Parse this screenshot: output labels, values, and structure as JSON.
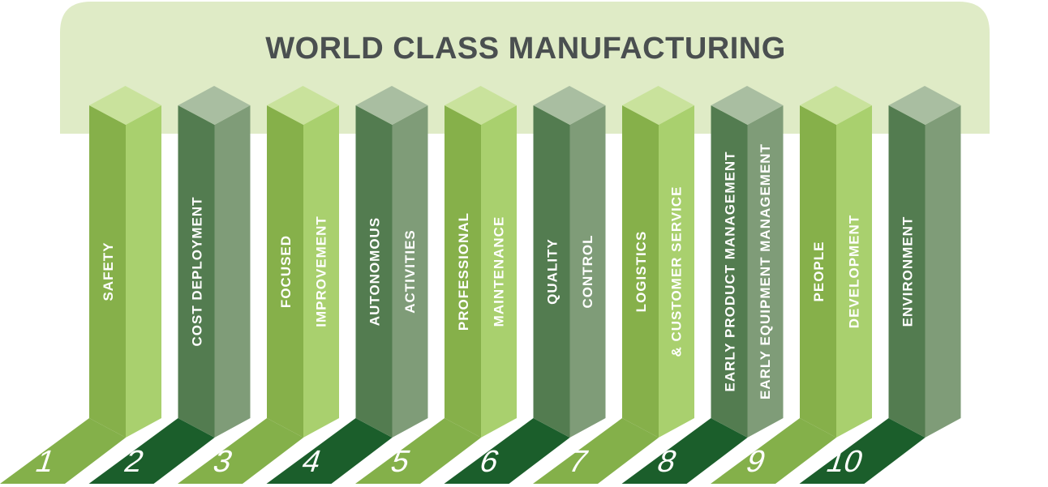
{
  "title": "WORLD CLASS MANUFACTURING",
  "colors": {
    "roof": "#dfebc6",
    "title": "#4a4f50",
    "light_front": "#86b04a",
    "light_side": "#a9d06e",
    "light_top": "#c9e29c",
    "light_base": "#84b04a",
    "dark_front": "#537c50",
    "dark_side": "#7f9c78",
    "dark_top": "#a9bea1",
    "dark_base": "#1b5e2b"
  },
  "pillars": [
    {
      "number": "1",
      "variant": "light",
      "lines": [
        "SAFETY"
      ]
    },
    {
      "number": "2",
      "variant": "dark",
      "lines": [
        "COST DEPLOYMENT"
      ]
    },
    {
      "number": "3",
      "variant": "light",
      "lines": [
        "FOCUSED",
        "IMPROVEMENT"
      ]
    },
    {
      "number": "4",
      "variant": "dark",
      "lines": [
        "AUTONOMOUS",
        "ACTIVITIES"
      ]
    },
    {
      "number": "5",
      "variant": "light",
      "lines": [
        "PROFESSIONAL",
        "MAINTENANCE"
      ]
    },
    {
      "number": "6",
      "variant": "dark",
      "lines": [
        "QUALITY",
        "CONTROL"
      ]
    },
    {
      "number": "7",
      "variant": "light",
      "lines": [
        "LOGISTICS",
        "& CUSTOMER SERVICE"
      ]
    },
    {
      "number": "8",
      "variant": "dark",
      "lines": [
        "EARLY PRODUCT MANAGEMENT",
        "EARLY EQUIPMENT MANAGEMENT"
      ]
    },
    {
      "number": "9",
      "variant": "light",
      "lines": [
        "PEOPLE",
        "DEVELOPMENT"
      ]
    },
    {
      "number": "10",
      "variant": "dark",
      "lines": [
        "ENVIRONMENT"
      ]
    }
  ]
}
